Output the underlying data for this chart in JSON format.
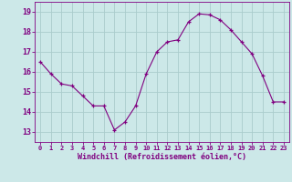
{
  "x": [
    0,
    1,
    2,
    3,
    4,
    5,
    6,
    7,
    8,
    9,
    10,
    11,
    12,
    13,
    14,
    15,
    16,
    17,
    18,
    19,
    20,
    21,
    22,
    23
  ],
  "y": [
    16.5,
    15.9,
    15.4,
    15.3,
    14.8,
    14.3,
    14.3,
    13.1,
    13.5,
    14.3,
    15.9,
    17.0,
    17.5,
    17.6,
    18.5,
    18.9,
    18.85,
    18.6,
    18.1,
    17.5,
    16.9,
    15.8,
    14.5,
    14.5
  ],
  "line_color": "#800080",
  "marker": "+",
  "bg_color": "#cce8e8",
  "grid_color": "#aacccc",
  "xlabel": "Windchill (Refroidissement éolien,°C)",
  "xlabel_color": "#800080",
  "tick_color": "#800080",
  "ylim": [
    12.5,
    19.5
  ],
  "xlim": [
    -0.5,
    23.5
  ],
  "yticks": [
    13,
    14,
    15,
    16,
    17,
    18,
    19
  ],
  "xticks": [
    0,
    1,
    2,
    3,
    4,
    5,
    6,
    7,
    8,
    9,
    10,
    11,
    12,
    13,
    14,
    15,
    16,
    17,
    18,
    19,
    20,
    21,
    22,
    23
  ],
  "xtick_labels": [
    "0",
    "1",
    "2",
    "3",
    "4",
    "5",
    "6",
    "7",
    "8",
    "9",
    "10",
    "11",
    "12",
    "13",
    "14",
    "15",
    "16",
    "17",
    "18",
    "19",
    "20",
    "21",
    "22",
    "23"
  ],
  "title_fontsize": 6,
  "xtick_fontsize": 5,
  "ytick_fontsize": 6,
  "xlabel_fontsize": 6
}
